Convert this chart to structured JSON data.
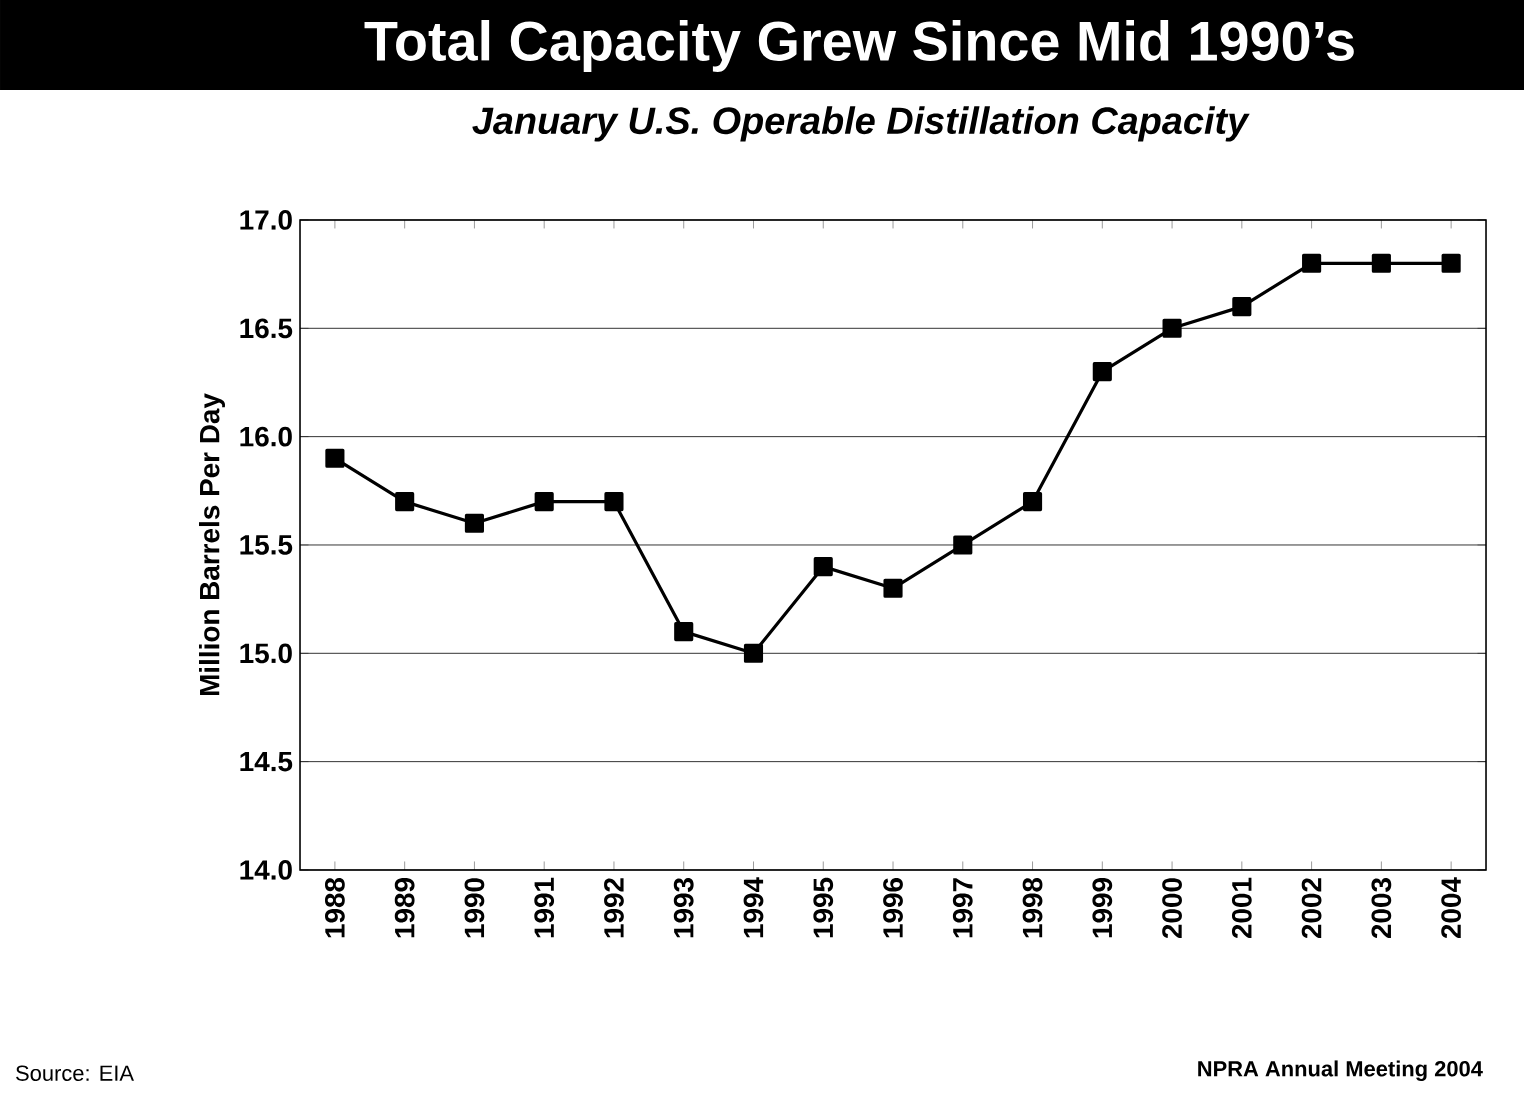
{
  "chart_data": {
    "type": "line",
    "title": "Total Capacity Grew Since Mid 1990’s",
    "subtitle": "January U.S. Operable Distillation Capacity",
    "ylabel": "Million Barrels Per Day",
    "categories": [
      "1988",
      "1989",
      "1990",
      "1991",
      "1992",
      "1993",
      "1994",
      "1995",
      "1996",
      "1997",
      "1998",
      "1999",
      "2000",
      "2001",
      "2002",
      "2003",
      "2004"
    ],
    "values": [
      15.9,
      15.7,
      15.6,
      15.7,
      15.7,
      15.1,
      15.0,
      15.4,
      15.3,
      15.5,
      15.7,
      16.3,
      16.5,
      16.6,
      16.8,
      16.8,
      16.8
    ],
    "color": "#000000",
    "marker": "square",
    "line_style": "solid",
    "grid": "y",
    "ylim": [
      14.0,
      17.0
    ],
    "yticks": [
      {
        "value": 14.0,
        "label": "14.0"
      },
      {
        "value": 14.5,
        "label": "14.5"
      },
      {
        "value": 15.0,
        "label": "15.0"
      },
      {
        "value": 15.5,
        "label": "15.5"
      },
      {
        "value": 16.0,
        "label": "16.0"
      },
      {
        "value": 16.5,
        "label": "16.5"
      },
      {
        "value": 17.0,
        "label": "17.0"
      }
    ],
    "annotations": [
      "Source: EIA",
      "NPRA Annual Meeting 2004"
    ]
  }
}
